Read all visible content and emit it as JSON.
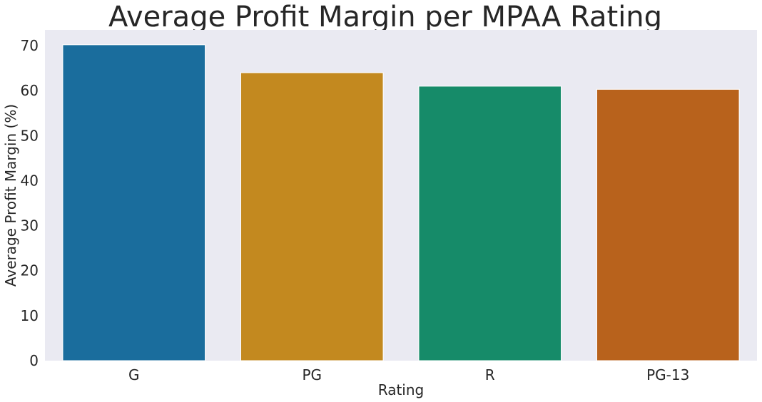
{
  "chart_data": {
    "type": "bar",
    "title": "Average Profit Margin per MPAA Rating",
    "xlabel": "Rating",
    "ylabel": "Average Profit Margin (%)",
    "categories": [
      "G",
      "PG",
      "R",
      "PG-13"
    ],
    "values": [
      70.2,
      64.0,
      61.0,
      60.3
    ],
    "ylim": [
      0,
      73.5
    ],
    "yticks": [
      0,
      10,
      20,
      30,
      40,
      50,
      60,
      70
    ],
    "grid": false,
    "background": "#EAEAF2",
    "colors": [
      "#1A6D9D",
      "#C3891F",
      "#168B69",
      "#B8621C"
    ]
  }
}
